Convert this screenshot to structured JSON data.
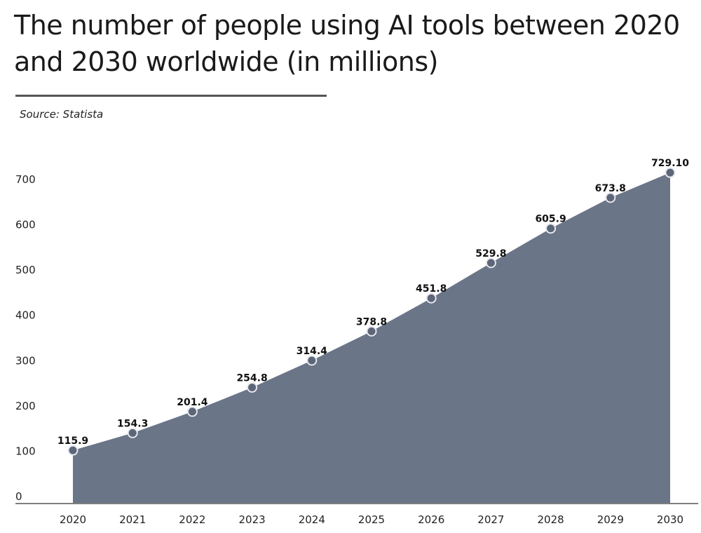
{
  "title": "The number of people using AI tools between 2020 and 2030 worldwide (in millions)",
  "source": "Source: Statista",
  "colors": {
    "area": "#6b7588",
    "marker": "#5d6679",
    "marker_border": "#e6e8ee",
    "axis": "#555555"
  },
  "chart_data": {
    "type": "area",
    "title": "The number of people using AI tools between 2020 and 2030 worldwide (in millions)",
    "xlabel": "",
    "ylabel": "",
    "categories": [
      "2020",
      "2021",
      "2022",
      "2023",
      "2024",
      "2025",
      "2026",
      "2027",
      "2028",
      "2029",
      "2030"
    ],
    "values": [
      115.9,
      154.3,
      201.4,
      254.8,
      314.4,
      378.8,
      451.8,
      529.8,
      605.9,
      673.8,
      729.1
    ],
    "data_labels": [
      "115.9",
      "154.3",
      "201.4",
      "254.8",
      "314.4",
      "378.8",
      "451.8",
      "529.8",
      "605.9",
      "673.8",
      "729.10"
    ],
    "yticks": [
      "0",
      "100",
      "200",
      "300",
      "400",
      "500",
      "600",
      "700"
    ],
    "ylim": [
      0,
      740
    ],
    "grid": false,
    "legend": "none"
  }
}
